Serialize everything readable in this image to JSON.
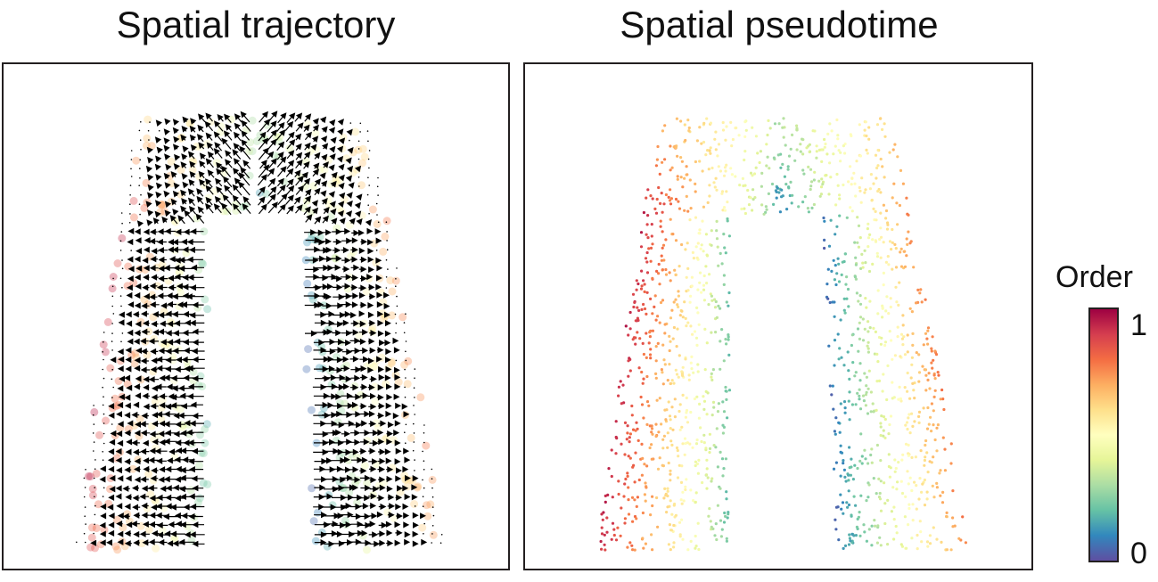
{
  "panels": {
    "left_title": "Spatial trajectory",
    "right_title": "Spatial pseudotime"
  },
  "legend": {
    "title": "Order",
    "tick_max": "1",
    "tick_min": "0",
    "colors": [
      "#5e4fa2",
      "#3288bd",
      "#66c2a5",
      "#abdda4",
      "#e6f598",
      "#ffffbf",
      "#fee08b",
      "#fdae61",
      "#f46d43",
      "#d53e4f",
      "#9e0142"
    ]
  },
  "chart_data": [
    {
      "type": "scatter",
      "title": "Spatial trajectory",
      "overlay": "vector-field",
      "color_by": "Order",
      "range": [
        0,
        1
      ],
      "axes_visible": false,
      "grid": false,
      "tissue_shape": "inverted-U",
      "arrow_color": "#000000",
      "point_alpha": 0.35
    },
    {
      "type": "scatter",
      "title": "Spatial pseudotime",
      "color_by": "Order",
      "range": [
        0,
        1
      ],
      "axes_visible": false,
      "grid": false,
      "tissue_shape": "inverted-U",
      "regions": [
        {
          "region": "inner-left arm",
          "order": 0.2
        },
        {
          "region": "inner-right arm",
          "order": 0.05
        },
        {
          "region": "top arch",
          "order": 0.5
        },
        {
          "region": "outer-left",
          "order": 0.92
        },
        {
          "region": "outer-right",
          "order": 0.72
        }
      ],
      "legend": "right"
    }
  ]
}
